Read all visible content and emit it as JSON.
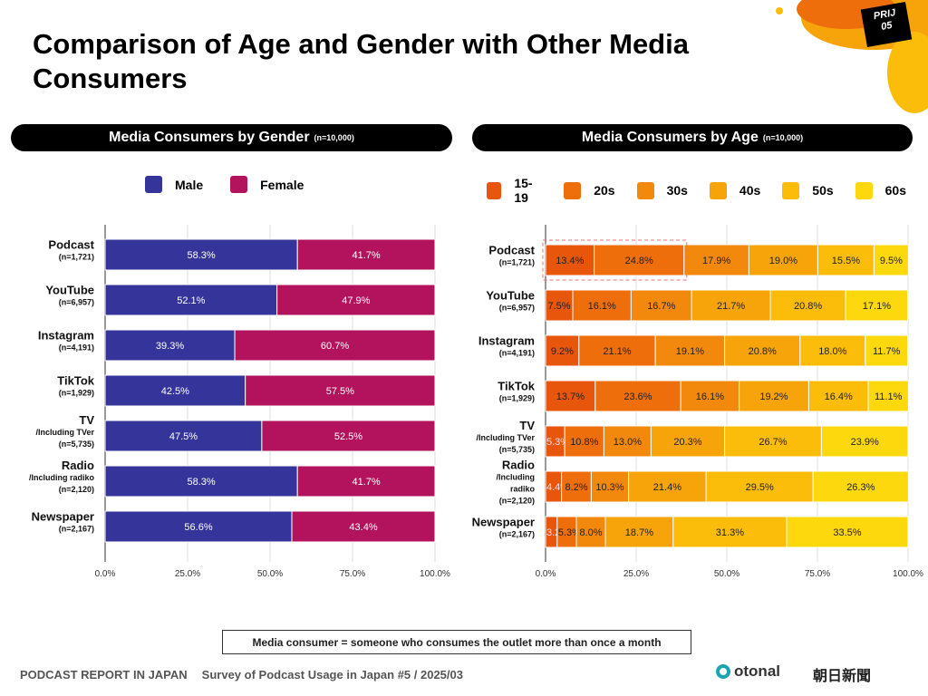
{
  "title": "Comparison of Age and Gender with Other Media Consumers",
  "badge": {
    "line1": "PRIJ",
    "line2": "05"
  },
  "note": "Media consumer = someone who consumes the outlet more than once a month",
  "footer": {
    "report": "PODCAST REPORT IN JAPAN",
    "survey": "Survey of Podcast Usage in Japan #5 / 2025/03"
  },
  "logos": {
    "otonal": "otonal",
    "asahi": "朝日新聞"
  },
  "chart_data": [
    {
      "type": "bar",
      "orientation": "horizontal",
      "stacked": true,
      "title": "Media Consumers by Gender",
      "title_note": "(n=10,000)",
      "categories": [
        [
          "Podcast",
          "(n=1,721)"
        ],
        [
          "YouTube",
          "(n=6,957)"
        ],
        [
          "Instagram",
          "(n=4,191)"
        ],
        [
          "TikTok",
          "(n=1,929)"
        ],
        [
          "TV",
          "/Including TVer",
          "(n=5,735)"
        ],
        [
          "Radio",
          "/Including radiko",
          "(n=2,120)"
        ],
        [
          "Newspaper",
          "(n=2,167)"
        ]
      ],
      "xlim": [
        0,
        100
      ],
      "xticks": [
        "0.0%",
        "25.0%",
        "50.0%",
        "75.0%",
        "100.0%"
      ],
      "legend": "top",
      "series": [
        {
          "name": "Male",
          "color": "#35349a",
          "values": [
            58.3,
            52.1,
            39.3,
            42.5,
            47.5,
            58.3,
            56.6
          ]
        },
        {
          "name": "Female",
          "color": "#b3135c",
          "values": [
            41.7,
            47.9,
            60.7,
            57.5,
            52.5,
            41.7,
            43.4
          ]
        }
      ]
    },
    {
      "type": "bar",
      "orientation": "horizontal",
      "stacked": true,
      "title": "Media Consumers by Age",
      "title_note": "(n=10,000)",
      "categories": [
        [
          "Podcast",
          "(n=1,721)"
        ],
        [
          "YouTube",
          "(n=6,957)"
        ],
        [
          "Instagram",
          "(n=4,191)"
        ],
        [
          "TikTok",
          "(n=1,929)"
        ],
        [
          "TV",
          "/Including TVer",
          "(n=5,735)"
        ],
        [
          "Radio",
          "/Including",
          "radiko",
          "(n=2,120)"
        ],
        [
          "Newspaper",
          "(n=2,167)"
        ]
      ],
      "xlim": [
        0,
        100
      ],
      "xticks": [
        "0.0%",
        "25.0%",
        "50.0%",
        "75.0%",
        "100.0%"
      ],
      "legend": "top",
      "highlight": {
        "category": "Podcast",
        "series": [
          "15-19",
          "20s"
        ]
      },
      "series": [
        {
          "name": "15-19",
          "color": "#e8560c",
          "values": [
            13.4,
            7.5,
            9.2,
            13.7,
            5.3,
            4.4,
            3.2
          ],
          "labels": [
            "13.4%",
            "7.5%",
            "9.2%",
            "13.7%",
            "5.3%",
            "4.4%",
            "3.2"
          ]
        },
        {
          "name": "20s",
          "color": "#ee6e0c",
          "values": [
            24.8,
            16.1,
            21.1,
            23.6,
            10.8,
            8.2,
            5.3
          ]
        },
        {
          "name": "30s",
          "color": "#f2890c",
          "values": [
            17.9,
            16.7,
            19.1,
            16.1,
            13.0,
            10.3,
            8.0
          ]
        },
        {
          "name": "40s",
          "color": "#f6a40a",
          "values": [
            19.0,
            21.7,
            20.8,
            19.2,
            20.3,
            21.4,
            18.7
          ]
        },
        {
          "name": "50s",
          "color": "#fbbd0a",
          "values": [
            15.5,
            20.8,
            18.0,
            16.4,
            26.7,
            29.5,
            31.3
          ]
        },
        {
          "name": "60s",
          "color": "#fdd80c",
          "values": [
            9.5,
            17.1,
            11.7,
            11.1,
            23.9,
            26.3,
            33.5
          ]
        }
      ]
    }
  ]
}
